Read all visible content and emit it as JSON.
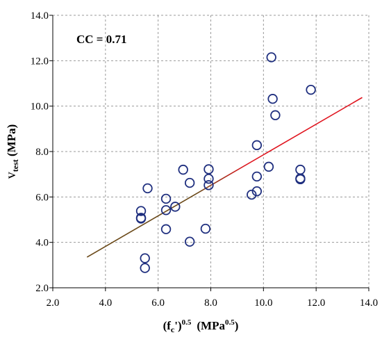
{
  "chart_data": {
    "type": "scatter",
    "annotation": "CC = 0.71",
    "xlabel": {
      "base": "(f",
      "sub": "c",
      "prime": "')",
      "sup": "0.5",
      "units": "(MPa",
      "units_sup": "0.5",
      "units_close": ")"
    },
    "ylabel": {
      "base": "v",
      "sub": "test",
      "units": " (MPa)"
    },
    "xlim": [
      2.0,
      14.0
    ],
    "ylim": [
      2.0,
      14.0
    ],
    "xticks": [
      "2.0",
      "4.0",
      "6.0",
      "8.0",
      "10.0",
      "12.0",
      "14.0"
    ],
    "yticks": [
      "2.0",
      "4.0",
      "6.0",
      "8.0",
      "10.0",
      "12.0",
      "14.0"
    ],
    "grid": true,
    "marker_color": "#1f2f7f",
    "fit_color_start": "#6b4a1a",
    "fit_color_end": "#e0141e",
    "points": [
      {
        "x": 5.35,
        "y": 5.38
      },
      {
        "x": 5.35,
        "y": 5.08
      },
      {
        "x": 5.35,
        "y": 5.05
      },
      {
        "x": 5.5,
        "y": 3.3
      },
      {
        "x": 5.5,
        "y": 2.87
      },
      {
        "x": 5.6,
        "y": 6.38
      },
      {
        "x": 6.3,
        "y": 5.92
      },
      {
        "x": 6.3,
        "y": 5.42
      },
      {
        "x": 6.3,
        "y": 4.58
      },
      {
        "x": 6.65,
        "y": 5.57
      },
      {
        "x": 6.95,
        "y": 7.2
      },
      {
        "x": 7.2,
        "y": 6.62
      },
      {
        "x": 7.2,
        "y": 4.03
      },
      {
        "x": 7.8,
        "y": 4.6
      },
      {
        "x": 7.92,
        "y": 7.22
      },
      {
        "x": 7.92,
        "y": 6.8
      },
      {
        "x": 7.92,
        "y": 6.52
      },
      {
        "x": 9.55,
        "y": 6.1
      },
      {
        "x": 9.75,
        "y": 8.28
      },
      {
        "x": 9.75,
        "y": 6.9
      },
      {
        "x": 9.75,
        "y": 6.25
      },
      {
        "x": 10.2,
        "y": 7.33
      },
      {
        "x": 10.3,
        "y": 12.15
      },
      {
        "x": 10.35,
        "y": 10.32
      },
      {
        "x": 10.45,
        "y": 9.6
      },
      {
        "x": 11.4,
        "y": 7.2
      },
      {
        "x": 11.4,
        "y": 6.82
      },
      {
        "x": 11.4,
        "y": 6.78
      },
      {
        "x": 11.8,
        "y": 10.72
      }
    ],
    "fit_line": {
      "x": [
        3.3,
        13.75
      ],
      "y": [
        3.35,
        10.38
      ]
    }
  }
}
